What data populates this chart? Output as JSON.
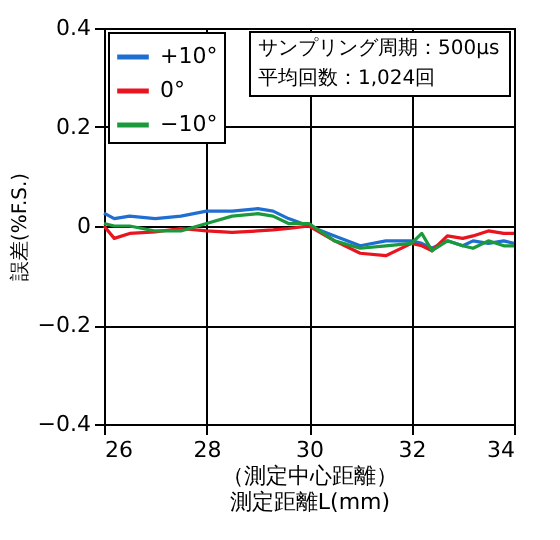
{
  "chart_data": {
    "type": "line",
    "xlabel": "測定距離L(mm)",
    "ylabel": "誤差(%F.S.)",
    "annotations": [
      "サンプリング周期：500μs",
      "平均回数：1,024回",
      "（測定中心距離）"
    ],
    "x": [
      26,
      26.2,
      26.5,
      27,
      27.5,
      28,
      28.5,
      29,
      29.3,
      29.6,
      30,
      30.5,
      31,
      31.5,
      32,
      32.2,
      32.4,
      32.7,
      33,
      33.2,
      33.5,
      33.8,
      34
    ],
    "series": [
      {
        "name": "+10°",
        "color": "#1f6fd1",
        "values": [
          0.026,
          0.015,
          0.02,
          0.015,
          0.02,
          0.03,
          0.03,
          0.035,
          0.03,
          0.015,
          0.0,
          -0.02,
          -0.04,
          -0.03,
          -0.03,
          -0.035,
          -0.045,
          -0.03,
          -0.04,
          -0.03,
          -0.035,
          -0.03,
          -0.035
        ]
      },
      {
        "name": "0°",
        "color": "#e8141e",
        "values": [
          0.0,
          -0.025,
          -0.015,
          -0.012,
          -0.005,
          -0.01,
          -0.013,
          -0.01,
          -0.008,
          -0.005,
          0.0,
          -0.03,
          -0.055,
          -0.06,
          -0.035,
          -0.04,
          -0.05,
          -0.02,
          -0.025,
          -0.02,
          -0.01,
          -0.015,
          -0.015
        ]
      },
      {
        "name": "−10°",
        "color": "#1a9a3c",
        "values": [
          0.005,
          0.0,
          0.0,
          -0.01,
          -0.01,
          0.005,
          0.02,
          0.025,
          0.02,
          0.005,
          0.005,
          -0.03,
          -0.045,
          -0.04,
          -0.035,
          -0.015,
          -0.05,
          -0.03,
          -0.04,
          -0.045,
          -0.03,
          -0.04,
          -0.04
        ]
      }
    ],
    "xlim": [
      26,
      34
    ],
    "xticks": [
      26,
      28,
      30,
      32,
      34
    ],
    "ylim": [
      -0.4,
      0.4
    ],
    "yticks": [
      {
        "value": -0.4,
        "label": "−0.4"
      },
      {
        "value": -0.2,
        "label": "−0.2"
      },
      0,
      0.2,
      0.4
    ],
    "grid": true,
    "legend": "top left",
    "line_style": "solid",
    "marker": "none"
  }
}
